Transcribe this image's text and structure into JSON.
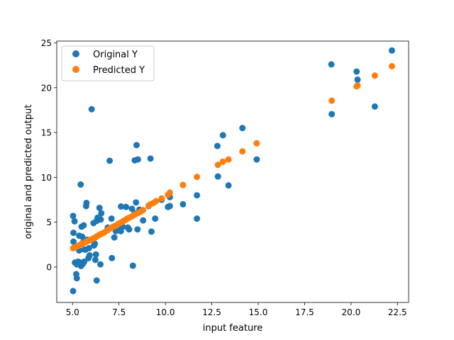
{
  "chart_data": {
    "type": "scatter",
    "title": "",
    "xlabel": "input feature",
    "ylabel": "original and predicted output",
    "xlim": [
      4.15,
      23.1
    ],
    "ylim": [
      -3.95,
      25.2
    ],
    "xticks": [
      5.0,
      7.5,
      10.0,
      12.5,
      15.0,
      17.5,
      20.0,
      22.5
    ],
    "xtick_labels": [
      "5.0",
      "7.5",
      "10.0",
      "12.5",
      "15.0",
      "17.5",
      "20.0",
      "22.5"
    ],
    "yticks": [
      0,
      5,
      10,
      15,
      20,
      25
    ],
    "ytick_labels": [
      "0",
      "5",
      "10",
      "15",
      "20",
      "25"
    ],
    "grid": false,
    "legend_position": "top-left",
    "series": [
      {
        "name": "Original Y",
        "color": "#1f77b4",
        "points": [
          [
            5.03,
            -2.68
          ],
          [
            5.03,
            5.7
          ],
          [
            5.05,
            3.82
          ],
          [
            5.05,
            2.83
          ],
          [
            5.11,
            5.1
          ],
          [
            5.13,
            0.5
          ],
          [
            5.2,
            -0.79
          ],
          [
            5.23,
            -1.25
          ],
          [
            5.23,
            0.3
          ],
          [
            5.3,
            0.6
          ],
          [
            5.36,
            1.85
          ],
          [
            5.36,
            3.5
          ],
          [
            5.41,
            0.5
          ],
          [
            5.44,
            9.2
          ],
          [
            5.46,
            0.12
          ],
          [
            5.49,
            4.5
          ],
          [
            5.52,
            3.38
          ],
          [
            5.55,
            0.35
          ],
          [
            5.56,
            2.73
          ],
          [
            5.6,
            4.65
          ],
          [
            5.63,
            0.6
          ],
          [
            5.65,
            1.95
          ],
          [
            5.7,
            1.95
          ],
          [
            5.73,
            6.8
          ],
          [
            5.75,
            7.15
          ],
          [
            5.8,
            3.05
          ],
          [
            5.86,
            1.0
          ],
          [
            5.88,
            2.1
          ],
          [
            5.92,
            1.3
          ],
          [
            6.03,
            17.6
          ],
          [
            6.13,
            4.9
          ],
          [
            6.15,
            2.4
          ],
          [
            6.2,
            2.6
          ],
          [
            6.23,
            0.8
          ],
          [
            6.26,
            1.4
          ],
          [
            6.3,
            5.15
          ],
          [
            6.3,
            -1.5
          ],
          [
            6.35,
            5.5
          ],
          [
            6.45,
            6.6
          ],
          [
            6.5,
            0.3
          ],
          [
            6.52,
            5.3
          ],
          [
            6.55,
            6.0
          ],
          [
            6.9,
            4.4
          ],
          [
            7.0,
            11.85
          ],
          [
            7.1,
            5.4
          ],
          [
            7.12,
            1.0
          ],
          [
            7.25,
            3.3
          ],
          [
            7.33,
            4.0
          ],
          [
            7.4,
            4.3
          ],
          [
            7.6,
            4.0
          ],
          [
            7.61,
            6.75
          ],
          [
            7.7,
            4.5
          ],
          [
            7.88,
            6.7
          ],
          [
            7.98,
            4.4
          ],
          [
            8.05,
            4.2
          ],
          [
            8.2,
            6.5
          ],
          [
            8.25,
            0.15
          ],
          [
            8.35,
            6.0
          ],
          [
            8.35,
            11.9
          ],
          [
            8.42,
            7.2
          ],
          [
            8.45,
            13.6
          ],
          [
            8.5,
            4.2
          ],
          [
            8.52,
            12.0
          ],
          [
            8.6,
            6.4
          ],
          [
            8.8,
            5.2
          ],
          [
            9.1,
            6.8
          ],
          [
            9.2,
            12.1
          ],
          [
            9.25,
            3.95
          ],
          [
            9.45,
            5.4
          ],
          [
            9.8,
            7.5
          ],
          [
            10.14,
            6.7
          ],
          [
            10.24,
            7.8
          ],
          [
            10.24,
            6.8
          ],
          [
            10.95,
            7.0
          ],
          [
            11.7,
            8.0
          ],
          [
            11.7,
            5.4
          ],
          [
            12.8,
            13.5
          ],
          [
            12.83,
            10.1
          ],
          [
            13.1,
            14.7
          ],
          [
            13.4,
            9.1
          ],
          [
            14.15,
            15.5
          ],
          [
            14.92,
            12.0
          ],
          [
            18.94,
            22.6
          ],
          [
            18.96,
            17.05
          ],
          [
            20.3,
            21.8
          ],
          [
            20.35,
            20.9
          ],
          [
            21.28,
            17.9
          ],
          [
            22.2,
            24.15
          ]
        ]
      },
      {
        "name": "Predicted Y",
        "color": "#ff7f0e",
        "points": [
          [
            5.03,
            2.1
          ],
          [
            5.13,
            2.2
          ],
          [
            5.23,
            2.3
          ],
          [
            5.33,
            2.4
          ],
          [
            5.43,
            2.5
          ],
          [
            5.52,
            2.6
          ],
          [
            5.62,
            2.7
          ],
          [
            5.72,
            2.8
          ],
          [
            5.82,
            2.9
          ],
          [
            5.92,
            3.0
          ],
          [
            6.03,
            3.1
          ],
          [
            6.13,
            3.2
          ],
          [
            6.23,
            3.3
          ],
          [
            6.33,
            3.45
          ],
          [
            6.45,
            3.6
          ],
          [
            6.55,
            3.7
          ],
          [
            6.7,
            3.85
          ],
          [
            6.85,
            4.05
          ],
          [
            6.95,
            4.2
          ],
          [
            7.05,
            4.35
          ],
          [
            7.15,
            4.45
          ],
          [
            7.25,
            4.55
          ],
          [
            7.35,
            4.65
          ],
          [
            7.45,
            4.8
          ],
          [
            7.55,
            4.9
          ],
          [
            7.65,
            5.0
          ],
          [
            7.75,
            5.15
          ],
          [
            7.85,
            5.25
          ],
          [
            7.95,
            5.4
          ],
          [
            8.05,
            5.5
          ],
          [
            8.2,
            5.65
          ],
          [
            8.35,
            5.85
          ],
          [
            8.5,
            6.0
          ],
          [
            8.65,
            6.15
          ],
          [
            8.8,
            6.35
          ],
          [
            9.1,
            6.85
          ],
          [
            9.2,
            7.0
          ],
          [
            9.35,
            7.15
          ],
          [
            9.5,
            7.35
          ],
          [
            9.8,
            7.65
          ],
          [
            10.14,
            8.05
          ],
          [
            10.24,
            8.3
          ],
          [
            10.95,
            9.15
          ],
          [
            11.7,
            10.05
          ],
          [
            12.83,
            11.4
          ],
          [
            13.1,
            11.75
          ],
          [
            13.4,
            12.0
          ],
          [
            14.15,
            12.9
          ],
          [
            14.92,
            13.8
          ],
          [
            18.96,
            18.55
          ],
          [
            20.3,
            20.15
          ],
          [
            20.35,
            20.25
          ],
          [
            21.28,
            21.35
          ],
          [
            22.2,
            22.4
          ]
        ]
      }
    ]
  }
}
